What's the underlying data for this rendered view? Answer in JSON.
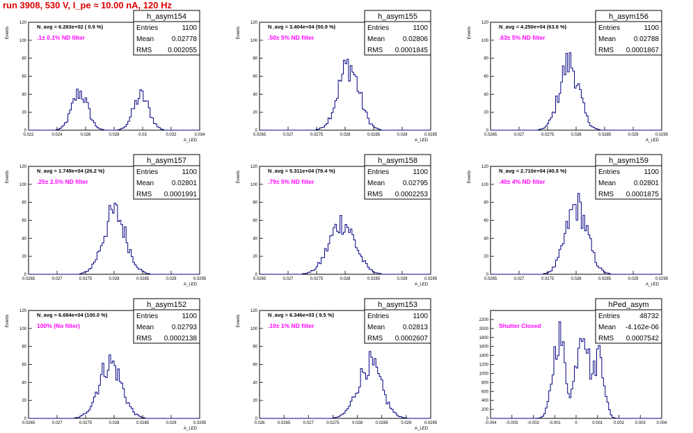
{
  "run_title": "run 3908,   530 V, I_pe ≈ 10.00 nA, 120 Hz",
  "colors": {
    "title": "#e00000",
    "filter_label": "#ff00ff",
    "histogram": "#000080"
  },
  "chart_data": [
    {
      "type": "histogram",
      "name": "h_asym154",
      "ylabel": "Events",
      "xlabel": "A_LED",
      "navg_text": "N_avg = 6.283e+02 ( 0.9 %)",
      "filter_text": ".1± 0.1% ND filter",
      "stats": {
        "Entries": "1100",
        "Mean": "0.02778",
        "RMS": "0.002055"
      },
      "xlim": [
        0.022,
        0.034
      ],
      "ylim": [
        0,
        120
      ],
      "xticks": [
        "0.022",
        "0.024",
        "0.026",
        "0.028",
        "0.03",
        "0.032",
        "0.034"
      ],
      "yticks": [
        "0",
        "20",
        "40",
        "60",
        "80",
        "100",
        "120"
      ],
      "peaks": [
        {
          "mu": 0.0256,
          "sigma": 0.00055,
          "amp": 42
        },
        {
          "mu": 0.0299,
          "sigma": 0.00055,
          "amp": 38
        }
      ]
    },
    {
      "type": "histogram",
      "name": "h_asym155",
      "ylabel": "Events",
      "xlabel": "A_LED",
      "navg_text": "N_avg = 3.404e+04 (50.9 %)",
      "filter_text": ".50± 5% ND filter",
      "stats": {
        "Entries": "1100",
        "Mean": "0.02806",
        "RMS": "0.0001845"
      },
      "xlim": [
        0.0265,
        0.0295
      ],
      "ylim": [
        0,
        120
      ],
      "xticks": [
        "0.0265",
        "0.027",
        "0.0275",
        "0.028",
        "0.0285",
        "0.029",
        "0.0295"
      ],
      "yticks": [
        "0",
        "20",
        "40",
        "60",
        "80",
        "100",
        "120"
      ],
      "peaks": [
        {
          "mu": 0.02806,
          "sigma": 0.0001845,
          "amp": 72
        }
      ]
    },
    {
      "type": "histogram",
      "name": "h_asym156",
      "ylabel": "Events",
      "xlabel": "A_LED",
      "navg_text": "N_avg = 4.250e+04 (63.6 %)",
      "filter_text": ".63± 5% ND filter",
      "stats": {
        "Entries": "1100",
        "Mean": "0.02788",
        "RMS": "0.0001867"
      },
      "xlim": [
        0.0265,
        0.0295
      ],
      "ylim": [
        0,
        120
      ],
      "xticks": [
        "0.0265",
        "0.027",
        "0.0275",
        "0.028",
        "0.0285",
        "0.029",
        "0.0295"
      ],
      "yticks": [
        "0",
        "20",
        "40",
        "60",
        "80",
        "100",
        "120"
      ],
      "peaks": [
        {
          "mu": 0.02788,
          "sigma": 0.00017,
          "amp": 75
        }
      ]
    },
    {
      "type": "histogram",
      "name": "h_asym157",
      "ylabel": "Events",
      "xlabel": "A_LED",
      "navg_text": "N_avg = 1.749e+04 (26.2 %)",
      "filter_text": ".25± 2.5% ND filter",
      "stats": {
        "Entries": "1100",
        "Mean": "0.02801",
        "RMS": "0.0001991"
      },
      "xlim": [
        0.0265,
        0.0295
      ],
      "ylim": [
        0,
        120
      ],
      "xticks": [
        "0.0265",
        "0.027",
        "0.0275",
        "0.028",
        "0.0285",
        "0.029",
        "0.0295"
      ],
      "yticks": [
        "0",
        "20",
        "40",
        "60",
        "80",
        "100",
        "120"
      ],
      "peaks": [
        {
          "mu": 0.02801,
          "sigma": 0.0001991,
          "amp": 68
        }
      ]
    },
    {
      "type": "histogram",
      "name": "h_asym158",
      "ylabel": "Events",
      "xlabel": "A_LED",
      "navg_text": "N_avg = 5.311e+04 (79.4 %)",
      "filter_text": ".79± 5% ND filter",
      "stats": {
        "Entries": "1100",
        "Mean": "0.02795",
        "RMS": "0.0002253"
      },
      "xlim": [
        0.0265,
        0.0295
      ],
      "ylim": [
        0,
        120
      ],
      "xticks": [
        "0.0265",
        "0.027",
        "0.0275",
        "0.028",
        "0.0285",
        "0.029",
        "0.0295"
      ],
      "yticks": [
        "0",
        "20",
        "40",
        "60",
        "80",
        "100",
        "120"
      ],
      "peaks": [
        {
          "mu": 0.02795,
          "sigma": 0.0002253,
          "amp": 58
        }
      ]
    },
    {
      "type": "histogram",
      "name": "h_asym159",
      "ylabel": "Events",
      "xlabel": "A_LED",
      "navg_text": "N_avg = 2.710e+04 (40.5 %)",
      "filter_text": ".40± 4% ND filter",
      "stats": {
        "Entries": "1100",
        "Mean": "0.02801",
        "RMS": "0.0001875"
      },
      "xlim": [
        0.0265,
        0.0295
      ],
      "ylim": [
        0,
        120
      ],
      "xticks": [
        "0.0265",
        "0.027",
        "0.0275",
        "0.028",
        "0.0285",
        "0.029",
        "0.0295"
      ],
      "yticks": [
        "0",
        "20",
        "40",
        "60",
        "80",
        "100",
        "120"
      ],
      "peaks": [
        {
          "mu": 0.02801,
          "sigma": 0.0001875,
          "amp": 76
        }
      ]
    },
    {
      "type": "histogram",
      "name": "h_asym152",
      "ylabel": "Events",
      "xlabel": "A_LED",
      "navg_text": "N_avg = 6.684e+04 (100.0 %)",
      "filter_text": "100% (No filter)",
      "stats": {
        "Entries": "1100",
        "Mean": "0.02793",
        "RMS": "0.0002138"
      },
      "xlim": [
        0.0265,
        0.0295
      ],
      "ylim": [
        0,
        120
      ],
      "xticks": [
        "0.0265",
        "0.027",
        "0.0275",
        "0.028",
        "0.0285",
        "0.029",
        "0.0295"
      ],
      "yticks": [
        "0",
        "20",
        "40",
        "60",
        "80",
        "100",
        "120"
      ],
      "peaks": [
        {
          "mu": 0.02793,
          "sigma": 0.0002,
          "amp": 62
        }
      ]
    },
    {
      "type": "histogram",
      "name": "h_asym153",
      "ylabel": "Events",
      "xlabel": "A_LED",
      "navg_text": "N_avg = 6.346e+03 ( 9.5 %)",
      "filter_text": ".10± 1% ND filter",
      "stats": {
        "Entries": "1100",
        "Mean": "0.02813",
        "RMS": "0.0002607"
      },
      "xlim": [
        0.026,
        0.0295
      ],
      "ylim": [
        0,
        120
      ],
      "xticks": [
        "0.026",
        "0.0265",
        "0.027",
        "0.0275",
        "0.028",
        "0.0285",
        "0.029",
        "0.0295"
      ],
      "yticks": [
        "0",
        "20",
        "40",
        "60",
        "80",
        "100",
        "120"
      ],
      "peaks": [
        {
          "mu": 0.02825,
          "sigma": 0.00024,
          "amp": 60
        }
      ]
    },
    {
      "type": "histogram",
      "name": "hPed_asym",
      "ylabel": "",
      "xlabel": "",
      "navg_text": "",
      "filter_text": "Shutter Closed",
      "stats": {
        "Entries": "48732",
        "Mean": "-4.162e-06",
        "RMS": "0.0007542"
      },
      "xlim": [
        -0.004,
        0.004
      ],
      "ylim": [
        0,
        2400
      ],
      "xticks": [
        "-0.004",
        "-0.003",
        "-0.002",
        "-0.001",
        "0",
        "0.001",
        "0.002",
        "0.003",
        "0.004"
      ],
      "yticks": [
        "0",
        "200",
        "400",
        "600",
        "800",
        "1000",
        "1200",
        "1400",
        "1600",
        "1800",
        "2000",
        "2200"
      ],
      "peaks": [
        {
          "mu": -0.0008,
          "sigma": 0.00028,
          "amp": 1850
        },
        {
          "mu": 0.0003,
          "sigma": 0.00028,
          "amp": 2150
        },
        {
          "mu": 0.0011,
          "sigma": 0.00022,
          "amp": 1450
        }
      ]
    }
  ]
}
